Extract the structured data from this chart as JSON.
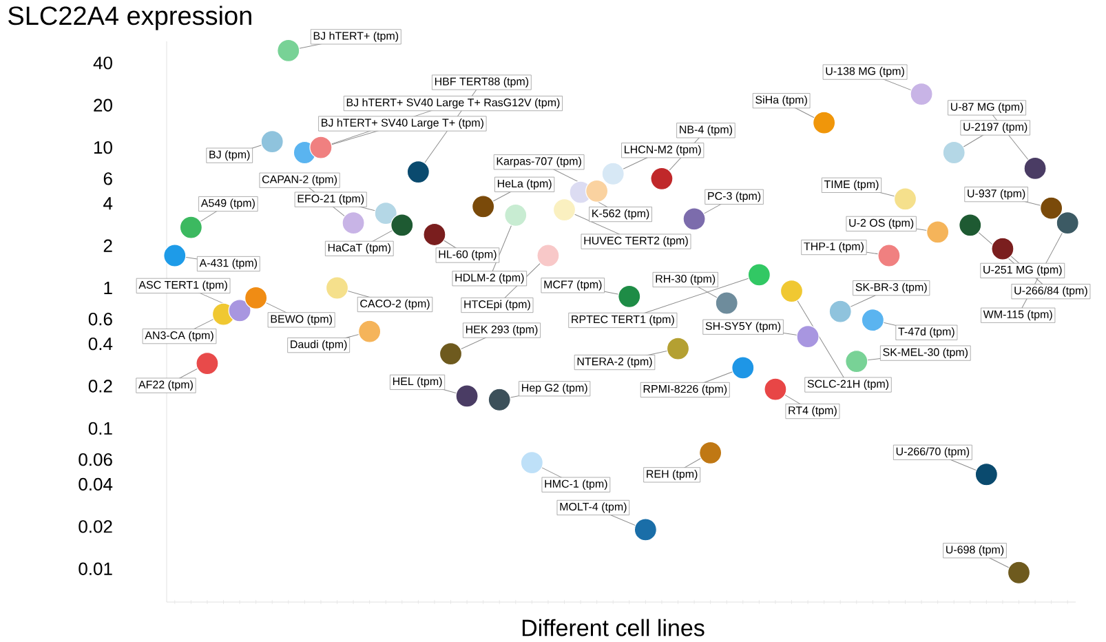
{
  "chart_data": {
    "type": "scatter",
    "title": "SLC22A4 expression",
    "xlabel": "Different cell lines",
    "categories": [
      null,
      null,
      null,
      null,
      null,
      null,
      null,
      null,
      null,
      null,
      null,
      null,
      null,
      null,
      null,
      null,
      null,
      null,
      null,
      null,
      null,
      null,
      null,
      null,
      null,
      null,
      null,
      null,
      null,
      null,
      null,
      null,
      null,
      null,
      null,
      null,
      null,
      null,
      null,
      null,
      null,
      null,
      null,
      null,
      null,
      null,
      null,
      null,
      null,
      null,
      null,
      null,
      null,
      null,
      null,
      null
    ],
    "values": [
      1.7,
      2.7,
      0.29,
      0.65,
      0.69,
      0.85,
      11,
      49,
      9.2,
      10,
      1.0,
      2.9,
      0.49,
      3.4,
      2.8,
      6.7,
      2.4,
      0.34,
      0.17,
      3.8,
      0.16,
      3.3,
      0.057,
      1.7,
      3.6,
      4.8,
      4.9,
      6.5,
      0.87,
      0.019,
      6.0,
      0.37,
      3.1,
      0.067,
      0.78,
      0.27,
      1.24,
      0.19,
      0.95,
      0.45,
      15,
      0.68,
      0.3,
      0.59,
      1.7,
      4.3,
      24,
      2.5,
      9.2,
      2.8,
      0.047,
      1.9,
      0.0094,
      7.1,
      3.7,
      2.9
    ],
    "colors": [
      "#1e9be8",
      "#3cb960",
      "#e84a4a",
      "#f0c832",
      "#a896e0",
      "#f08c14",
      "#8fc3dd",
      "#78d296",
      "#5ab4f0",
      "#f08080",
      "#f5e08c",
      "#c8b4e6",
      "#f5b45a",
      "#b4d7e6",
      "#1e5a32",
      "#0a4a6e",
      "#7a1e1e",
      "#6e5a1e",
      "#4a3c64",
      "#7a4a0a",
      "#3c505a",
      "#c8ecd2",
      "#bee0f8",
      "#f8c8c8",
      "#faf0c0",
      "#dcdcf2",
      "#fad2a0",
      "#d7e8f5",
      "#1e8c46",
      "#1a6ea8",
      "#c0282a",
      "#b4a032",
      "#7c6cac",
      "#c07814",
      "#6e8c9c",
      "#1e96e6",
      "#32c864",
      "#e84646",
      "#f0c832",
      "#a896e0",
      "#f0960a",
      "#8fc3dd",
      "#78d296",
      "#5ab4f0",
      "#f08080",
      "#f5e08c",
      "#c8b4e6",
      "#f5b45a",
      "#b4d7e6",
      "#1e5a32",
      "#0a4a6e",
      "#7a1e1e",
      "#6e5a1e",
      "#4a3c64",
      "#7a4a0a",
      "#3c5a64"
    ],
    "annotations": [
      "A-431 (tpm)",
      "A549 (tpm)",
      "AF22 (tpm)",
      "AN3-CA (tpm)",
      "ASC TERT1 (tpm)",
      "BEWO (tpm)",
      "BJ (tpm)",
      "BJ hTERT+ (tpm)",
      "BJ hTERT+ SV40 Large T+ (tpm)",
      "BJ hTERT+ SV40 Large T+ RasG12V (tpm)",
      "CACO-2 (tpm)",
      "CAPAN-2 (tpm)",
      "Daudi (tpm)",
      "EFO-21 (tpm)",
      "HaCaT (tpm)",
      "HBF TERT88 (tpm)",
      "HL-60 (tpm)",
      "HEK 293 (tpm)",
      "HEL (tpm)",
      "HeLa (tpm)",
      "Hep G2 (tpm)",
      "HDLM-2 (tpm)",
      "HMC-1 (tpm)",
      "HTCEpi (tpm)",
      "HUVEC TERT2 (tpm)",
      "K-562 (tpm)",
      "Karpas-707 (tpm)",
      "LHCN-M2 (tpm)",
      "MCF7 (tpm)",
      "MOLT-4 (tpm)",
      "NB-4 (tpm)",
      "NTERA-2 (tpm)",
      "PC-3 (tpm)",
      "REH (tpm)",
      "RH-30 (tpm)",
      "RPMI-8226 (tpm)",
      "RPTEC TERT1 (tpm)",
      "RT4 (tpm)",
      "SCLC-21H (tpm)",
      "SH-SY5Y (tpm)",
      "SiHa (tpm)",
      "SK-BR-3 (tpm)",
      "SK-MEL-30 (tpm)",
      "T-47d (tpm)",
      "THP-1 (tpm)",
      "TIME (tpm)",
      "U-138 MG (tpm)",
      "U-2 OS (tpm)",
      "U-2197 (tpm)",
      "U-251 MG (tpm)",
      "U-266/70 (tpm)",
      "U-266/84 (tpm)",
      "U-698 (tpm)",
      "U-87 MG (tpm)",
      "U-937 (tpm)",
      "WM-115 (tpm)"
    ],
    "ylim": [
      0.0058,
      57
    ],
    "yticks": [
      0.01,
      0.02,
      0.04,
      0.06,
      0.1,
      0.2,
      0.4,
      0.6,
      1,
      2,
      4,
      6,
      10,
      20,
      40
    ],
    "log": true,
    "tick_labels": "y",
    "marker": "circle"
  }
}
